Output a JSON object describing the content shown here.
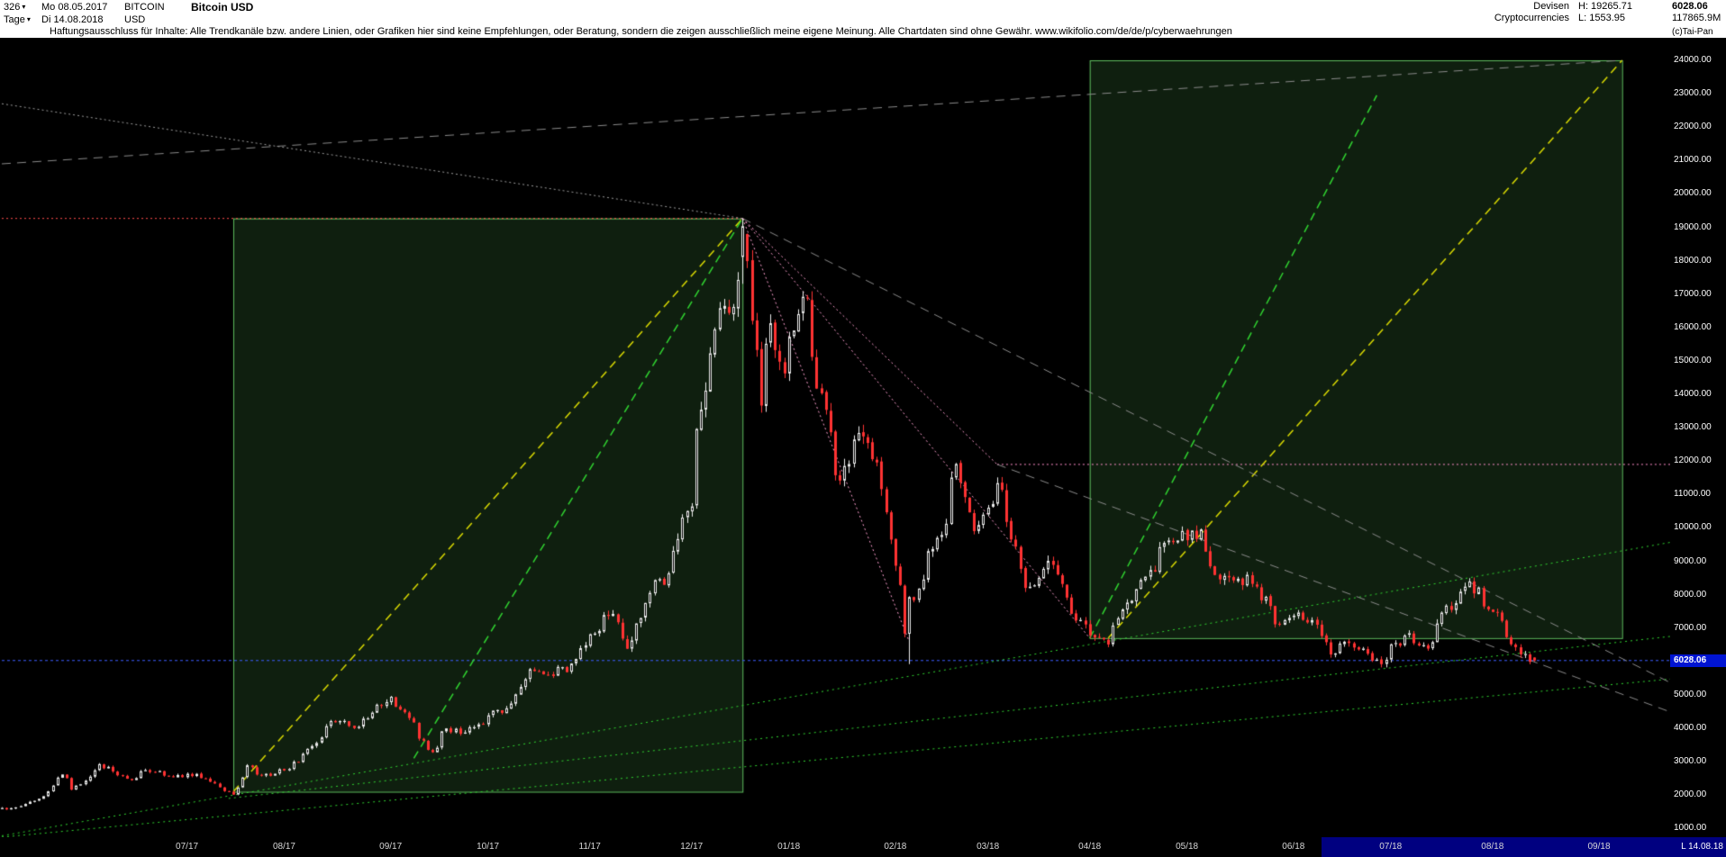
{
  "header": {
    "bars_count": "326",
    "start_date": "Mo 08.05.2017",
    "symbol": "BITCOIN",
    "title": "Bitcoin USD",
    "period": "Tage",
    "end_date": "Di 14.08.2018",
    "currency": "USD",
    "category_1": "Devisen",
    "category_2": "Cryptocurrencies",
    "range_high": "H: 19265.71",
    "range_low": "L: 1553.95",
    "last_price": "6028.06",
    "volume": "117865.9M",
    "copyright": "(c)Tai-Pan",
    "disclaimer": "Haftungsausschluss für Inhalte: Alle Trendkanäle bzw. andere Linien, oder Grafiken hier sind keine Empfehlungen, oder Beratung, sondern die zeigen ausschließlich meine eigene Meinung. Alle Chartdaten sind ohne Gewähr.  www.wikifolio.com/de/de/p/cyberwaehrungen"
  },
  "y_axis": {
    "last_price_tag": "6028.06"
  },
  "x_axis": {
    "corner_label": "L 14.08.18",
    "selection_start": "2018-06-11"
  },
  "chart_data": {
    "type": "candlestick",
    "title": "Bitcoin USD",
    "period": "daily",
    "start_date": "2017-05-08",
    "end_date": "2018-08-14",
    "axis_ref_date": "2018-09-01",
    "visible_high": 19265.71,
    "visible_low": 1553.95,
    "last_close": 6028.06,
    "y_ticks": [
      24000,
      23000,
      22000,
      21000,
      20000,
      19000,
      18000,
      17000,
      16000,
      15000,
      14000,
      13000,
      12000,
      11000,
      10000,
      9000,
      8000,
      7000,
      6000,
      5000,
      4000,
      3000,
      2000,
      1000
    ],
    "months": [
      "07/17",
      "08/17",
      "09/17",
      "10/17",
      "11/17",
      "12/17",
      "01/18",
      "02/18",
      "03/18",
      "04/18",
      "05/18",
      "06/18",
      "07/18",
      "08/18",
      "09/18"
    ],
    "seed": 1337,
    "noise": 0.05,
    "wick": 0.018,
    "anchors": [
      [
        "2017-05-08",
        1640
      ],
      [
        "2017-05-09",
        1575
      ],
      [
        "2017-05-15",
        1760
      ],
      [
        "2017-05-22",
        2150
      ],
      [
        "2017-05-25",
        2660
      ],
      [
        "2017-05-29",
        2200
      ],
      [
        "2017-06-06",
        2860
      ],
      [
        "2017-06-12",
        2650
      ],
      [
        "2017-06-15",
        2420
      ],
      [
        "2017-06-20",
        2760
      ],
      [
        "2017-06-27",
        2550
      ],
      [
        "2017-07-05",
        2610
      ],
      [
        "2017-07-11",
        2340
      ],
      [
        "2017-07-14",
        2050
      ],
      [
        "2017-07-17",
        1980
      ],
      [
        "2017-07-20",
        2850
      ],
      [
        "2017-07-25",
        2560
      ],
      [
        "2017-08-01",
        2750
      ],
      [
        "2017-08-08",
        3420
      ],
      [
        "2017-08-15",
        4270
      ],
      [
        "2017-08-22",
        4060
      ],
      [
        "2017-09-01",
        4900
      ],
      [
        "2017-09-08",
        4250
      ],
      [
        "2017-09-14",
        3250
      ],
      [
        "2017-09-18",
        3900
      ],
      [
        "2017-09-25",
        3950
      ],
      [
        "2017-10-02",
        4400
      ],
      [
        "2017-10-09",
        4800
      ],
      [
        "2017-10-13",
        5650
      ],
      [
        "2017-10-18",
        5560
      ],
      [
        "2017-10-25",
        5750
      ],
      [
        "2017-11-01",
        6750
      ],
      [
        "2017-11-08",
        7450
      ],
      [
        "2017-11-12",
        5950
      ],
      [
        "2017-11-17",
        7780
      ],
      [
        "2017-11-25",
        8760
      ],
      [
        "2017-12-01",
        10900
      ],
      [
        "2017-12-06",
        14050
      ],
      [
        "2017-12-08",
        16200
      ],
      [
        "2017-12-11",
        16700
      ],
      [
        "2017-12-13",
        16300
      ],
      [
        "2017-12-15",
        17800
      ],
      [
        "2017-12-18",
        19050
      ],
      [
        "2017-12-22",
        13900
      ],
      [
        "2017-12-26",
        15800
      ],
      [
        "2017-12-29",
        14400
      ],
      [
        "2018-01-05",
        17150
      ],
      [
        "2018-01-08",
        15050
      ],
      [
        "2018-01-16",
        11300
      ],
      [
        "2018-01-20",
        12850
      ],
      [
        "2018-01-28",
        11800
      ],
      [
        "2018-02-05",
        6950
      ],
      [
        "2018-02-06",
        7750
      ],
      [
        "2018-02-16",
        10150
      ],
      [
        "2018-02-20",
        11650
      ],
      [
        "2018-02-25",
        9650
      ],
      [
        "2018-03-05",
        11550
      ],
      [
        "2018-03-09",
        9250
      ],
      [
        "2018-03-14",
        8200
      ],
      [
        "2018-03-21",
        8950
      ],
      [
        "2018-03-29",
        7100
      ],
      [
        "2018-04-06",
        6650
      ],
      [
        "2018-04-12",
        7900
      ],
      [
        "2018-04-20",
        8850
      ],
      [
        "2018-04-24",
        9650
      ],
      [
        "2018-05-04",
        9750
      ],
      [
        "2018-05-11",
        8450
      ],
      [
        "2018-05-21",
        8400
      ],
      [
        "2018-05-28",
        7150
      ],
      [
        "2018-06-02",
        7650
      ],
      [
        "2018-06-10",
        6780
      ],
      [
        "2018-06-13",
        6300
      ],
      [
        "2018-06-18",
        6750
      ],
      [
        "2018-06-24",
        6150
      ],
      [
        "2018-06-28",
        5900
      ],
      [
        "2018-07-03",
        6600
      ],
      [
        "2018-07-08",
        6750
      ],
      [
        "2018-07-12",
        6250
      ],
      [
        "2018-07-17",
        7350
      ],
      [
        "2018-07-24",
        8400
      ],
      [
        "2018-07-31",
        7750
      ],
      [
        "2018-08-04",
        7050
      ],
      [
        "2018-08-08",
        6300
      ],
      [
        "2018-08-11",
        6250
      ],
      [
        "2018-08-14",
        6028.06
      ]
    ],
    "specials": {
      "high_date": "2017-12-18",
      "high": 19265.71,
      "low_date": "2017-05-09",
      "low": 1553.95,
      "crash_low_date": "2018-02-06",
      "crash_low": 5920,
      "last_close": 6028.06
    },
    "colors": {
      "background": "#000000",
      "up": "#ededed",
      "down": "#ff3232",
      "box_stroke": "#5fbf5f",
      "box_fill": "rgba(120,255,120,0.12)",
      "last_price_line": "#3c5cff",
      "tag_bg": "#0014d2",
      "selection": "#000080"
    },
    "overlays": {
      "boxes": [
        {
          "name": "trend-box-2017",
          "x1": "2017-07-17",
          "y1": 2100,
          "x2": "2017-12-18",
          "y2": 19265.71
        },
        {
          "name": "trend-box-2018",
          "x1": "2018-04-02",
          "y1": 6700,
          "x2": "2018-09-10",
          "y2": 24000
        }
      ],
      "lines": [
        {
          "name": "resistance-high",
          "x1": "2017-05-08",
          "y1": 19265.71,
          "x2": "2017-12-18",
          "y2": 19265.71,
          "color": "#ff4d4d",
          "dash": [
            2,
            3
          ],
          "w": 1
        },
        {
          "name": "resistance-11900",
          "x1": "2018-03-05",
          "y1": 11900,
          "x2": "2018-10-08",
          "y2": 11900,
          "color": "#ff8cc8",
          "dash": [
            2,
            3
          ],
          "w": 1
        },
        {
          "name": "last-price-line",
          "x1": "2017-05-08",
          "y1": 6028.06,
          "x2": "2018-10-08",
          "y2": 6028.06,
          "color": "#3c5cff",
          "dash": [
            3,
            3
          ],
          "w": 1
        },
        {
          "name": "box1-yellow-trend",
          "x1": "2017-07-17",
          "y1": 2100,
          "x2": "2017-12-18",
          "y2": 19265.71,
          "color": "#d9d900",
          "dash": [
            9,
            6
          ],
          "w": 1.5
        },
        {
          "name": "box1-green-trend",
          "x1": "2017-09-08",
          "y1": 3100,
          "x2": "2017-12-18",
          "y2": 19265.71,
          "color": "#2fd32f",
          "dash": [
            9,
            6
          ],
          "w": 1.5
        },
        {
          "name": "box2-green-trend",
          "x1": "2018-04-02",
          "y1": 6700,
          "x2": "2018-06-27",
          "y2": 22950,
          "color": "#2fd32f",
          "dash": [
            9,
            6
          ],
          "w": 1.5
        },
        {
          "name": "box2-yellow-trend",
          "x1": "2018-04-06",
          "y1": 6700,
          "x2": "2018-09-10",
          "y2": 24000,
          "color": "#d9d900",
          "dash": [
            9,
            6
          ],
          "w": 1.5
        },
        {
          "name": "green-support-a",
          "x1": "2017-07-14",
          "y1": 1900,
          "x2": "2018-10-08",
          "y2": 6900,
          "color": "#2fd32f",
          "dash": [
            2,
            4
          ],
          "w": 1
        },
        {
          "name": "green-support-b",
          "x1": "2017-05-08",
          "y1": 780,
          "x2": "2018-10-08",
          "y2": 9800,
          "color": "#2fd32f",
          "dash": [
            2,
            4
          ],
          "w": 1
        },
        {
          "name": "green-support-c",
          "x1": "2017-05-08",
          "y1": 740,
          "x2": "2018-10-08",
          "y2": 5600,
          "color": "#2fd32f",
          "dash": [
            2,
            4
          ],
          "w": 1
        },
        {
          "name": "gray-resistance-top",
          "x1": "2017-05-08",
          "y1": 20900,
          "x2": "2018-09-10",
          "y2": 24000,
          "color": "#8a8a8a",
          "dash": [
            10,
            7
          ],
          "w": 1
        },
        {
          "name": "gray-dotted-to-peak",
          "x1": "2017-05-08",
          "y1": 22700,
          "x2": "2017-12-18",
          "y2": 19265.71,
          "color": "#9a9a9a",
          "dash": [
            2,
            3
          ],
          "w": 1
        },
        {
          "name": "gray-downtrend-1",
          "x1": "2017-12-18",
          "y1": 19265.71,
          "x2": "2018-10-08",
          "y2": 4700,
          "color": "#8a8a8a",
          "dash": [
            10,
            7
          ],
          "w": 1
        },
        {
          "name": "gray-downtrend-2",
          "x1": "2018-03-05",
          "y1": 11900,
          "x2": "2018-10-08",
          "y2": 4000,
          "color": "#8a8a8a",
          "dash": [
            10,
            7
          ],
          "w": 1
        },
        {
          "name": "pink-fan-1",
          "x1": "2017-12-18",
          "y1": 19265.71,
          "x2": "2018-02-06",
          "y2": 6600,
          "color": "#ff9ecf",
          "dash": [
            2,
            3
          ],
          "w": 1
        },
        {
          "name": "pink-fan-2",
          "x1": "2017-12-18",
          "y1": 19265.71,
          "x2": "2018-04-02",
          "y2": 6700,
          "color": "#ff9ecf",
          "dash": [
            2,
            3
          ],
          "w": 1
        },
        {
          "name": "pink-fan-3",
          "x1": "2017-12-18",
          "y1": 19265.71,
          "x2": "2018-03-05",
          "y2": 11900,
          "color": "#ff9ecf",
          "dash": [
            2,
            3
          ],
          "w": 1
        }
      ]
    }
  }
}
